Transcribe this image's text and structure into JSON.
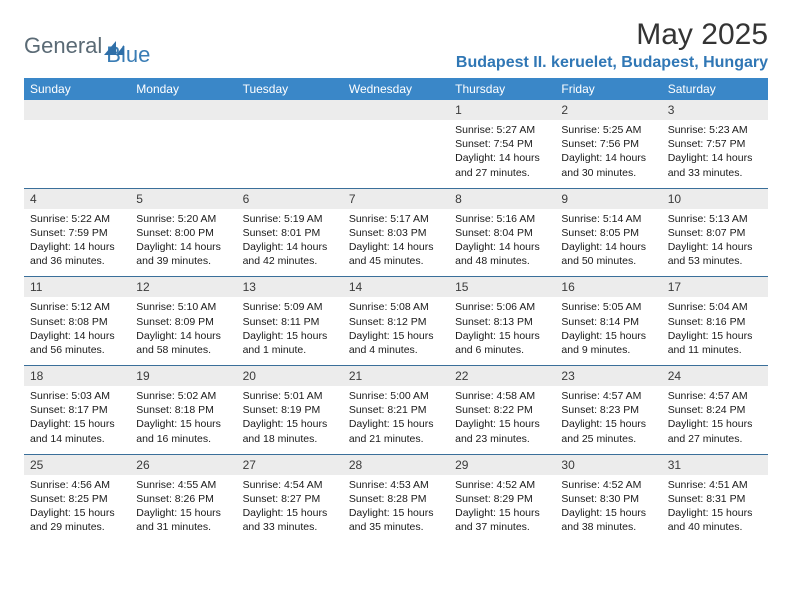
{
  "logo": {
    "text1": "General",
    "text2": "Blue"
  },
  "title": "May 2025",
  "location": "Budapest II. keruelet, Budapest, Hungary",
  "colors": {
    "header_bg": "#3a87c8",
    "header_text": "#ffffff",
    "daynum_bg": "#ececec",
    "location_text": "#3077b5",
    "rule": "#3a6f9a",
    "logo_gray": "#5a6a75",
    "logo_blue": "#3a7db5"
  },
  "dow": [
    "Sunday",
    "Monday",
    "Tuesday",
    "Wednesday",
    "Thursday",
    "Friday",
    "Saturday"
  ],
  "weeks": [
    [
      null,
      null,
      null,
      null,
      {
        "n": "1",
        "sr": "5:27 AM",
        "ss": "7:54 PM",
        "dl": "14 hours and 27 minutes."
      },
      {
        "n": "2",
        "sr": "5:25 AM",
        "ss": "7:56 PM",
        "dl": "14 hours and 30 minutes."
      },
      {
        "n": "3",
        "sr": "5:23 AM",
        "ss": "7:57 PM",
        "dl": "14 hours and 33 minutes."
      }
    ],
    [
      {
        "n": "4",
        "sr": "5:22 AM",
        "ss": "7:59 PM",
        "dl": "14 hours and 36 minutes."
      },
      {
        "n": "5",
        "sr": "5:20 AM",
        "ss": "8:00 PM",
        "dl": "14 hours and 39 minutes."
      },
      {
        "n": "6",
        "sr": "5:19 AM",
        "ss": "8:01 PM",
        "dl": "14 hours and 42 minutes."
      },
      {
        "n": "7",
        "sr": "5:17 AM",
        "ss": "8:03 PM",
        "dl": "14 hours and 45 minutes."
      },
      {
        "n": "8",
        "sr": "5:16 AM",
        "ss": "8:04 PM",
        "dl": "14 hours and 48 minutes."
      },
      {
        "n": "9",
        "sr": "5:14 AM",
        "ss": "8:05 PM",
        "dl": "14 hours and 50 minutes."
      },
      {
        "n": "10",
        "sr": "5:13 AM",
        "ss": "8:07 PM",
        "dl": "14 hours and 53 minutes."
      }
    ],
    [
      {
        "n": "11",
        "sr": "5:12 AM",
        "ss": "8:08 PM",
        "dl": "14 hours and 56 minutes."
      },
      {
        "n": "12",
        "sr": "5:10 AM",
        "ss": "8:09 PM",
        "dl": "14 hours and 58 minutes."
      },
      {
        "n": "13",
        "sr": "5:09 AM",
        "ss": "8:11 PM",
        "dl": "15 hours and 1 minute."
      },
      {
        "n": "14",
        "sr": "5:08 AM",
        "ss": "8:12 PM",
        "dl": "15 hours and 4 minutes."
      },
      {
        "n": "15",
        "sr": "5:06 AM",
        "ss": "8:13 PM",
        "dl": "15 hours and 6 minutes."
      },
      {
        "n": "16",
        "sr": "5:05 AM",
        "ss": "8:14 PM",
        "dl": "15 hours and 9 minutes."
      },
      {
        "n": "17",
        "sr": "5:04 AM",
        "ss": "8:16 PM",
        "dl": "15 hours and 11 minutes."
      }
    ],
    [
      {
        "n": "18",
        "sr": "5:03 AM",
        "ss": "8:17 PM",
        "dl": "15 hours and 14 minutes."
      },
      {
        "n": "19",
        "sr": "5:02 AM",
        "ss": "8:18 PM",
        "dl": "15 hours and 16 minutes."
      },
      {
        "n": "20",
        "sr": "5:01 AM",
        "ss": "8:19 PM",
        "dl": "15 hours and 18 minutes."
      },
      {
        "n": "21",
        "sr": "5:00 AM",
        "ss": "8:21 PM",
        "dl": "15 hours and 21 minutes."
      },
      {
        "n": "22",
        "sr": "4:58 AM",
        "ss": "8:22 PM",
        "dl": "15 hours and 23 minutes."
      },
      {
        "n": "23",
        "sr": "4:57 AM",
        "ss": "8:23 PM",
        "dl": "15 hours and 25 minutes."
      },
      {
        "n": "24",
        "sr": "4:57 AM",
        "ss": "8:24 PM",
        "dl": "15 hours and 27 minutes."
      }
    ],
    [
      {
        "n": "25",
        "sr": "4:56 AM",
        "ss": "8:25 PM",
        "dl": "15 hours and 29 minutes."
      },
      {
        "n": "26",
        "sr": "4:55 AM",
        "ss": "8:26 PM",
        "dl": "15 hours and 31 minutes."
      },
      {
        "n": "27",
        "sr": "4:54 AM",
        "ss": "8:27 PM",
        "dl": "15 hours and 33 minutes."
      },
      {
        "n": "28",
        "sr": "4:53 AM",
        "ss": "8:28 PM",
        "dl": "15 hours and 35 minutes."
      },
      {
        "n": "29",
        "sr": "4:52 AM",
        "ss": "8:29 PM",
        "dl": "15 hours and 37 minutes."
      },
      {
        "n": "30",
        "sr": "4:52 AM",
        "ss": "8:30 PM",
        "dl": "15 hours and 38 minutes."
      },
      {
        "n": "31",
        "sr": "4:51 AM",
        "ss": "8:31 PM",
        "dl": "15 hours and 40 minutes."
      }
    ]
  ],
  "labels": {
    "sunrise": "Sunrise:",
    "sunset": "Sunset:",
    "daylight": "Daylight:"
  }
}
